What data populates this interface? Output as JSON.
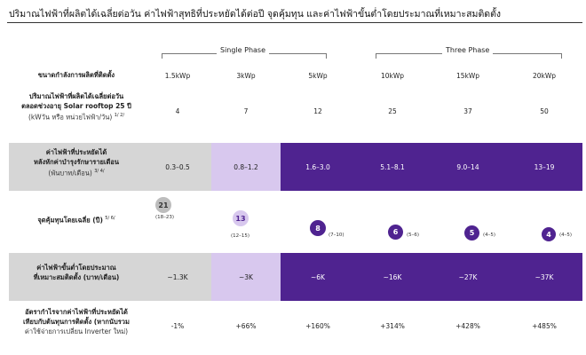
{
  "title": "ปริมาณไฟฟ้าที่ผลิตได้เฉลี่ยต่อวัน ค่าไฟฟ้าสุทธิที่ประหยัดได้ต่อปี จุดคุ้มทุน และค่าไฟฟ้าขั้นต่ำโดยประมาณที่เหมาะสมติดตั้ง",
  "phases": {
    "single": "Single Phase",
    "three": "Three Phase"
  },
  "rows": {
    "capacity": {
      "label": "ขนาดกำลังการผลิตที่ติดตั้ง",
      "values": [
        "1.5kWp",
        "3kWp",
        "5kWp",
        "10kWp",
        "15kWp",
        "20kWp"
      ]
    },
    "energy": {
      "label1": "ปริมาณไฟฟ้าที่ผลิตได้เฉลี่ยต่อวัน",
      "label2": "ตลอดช่วงอายุ Solar rooftop 25 ปี",
      "label3": "(kWวัน หรือ หน่วยไฟฟ้า/วัน)",
      "note": "1/ 2/",
      "values": [
        "4",
        "7",
        "12",
        "25",
        "37",
        "50"
      ]
    },
    "savings": {
      "label1": "ค่าไฟฟ้าที่ประหยัดได้",
      "label2": "หลังหักค่าบำรุงรักษารายเดือน",
      "label3": "(พันบาท/เดือน)",
      "note": "3/ 4/",
      "values": [
        "0.3–0.5",
        "0.8–1.2",
        "1.6–3.0",
        "5.1–8.1",
        "9.0–14",
        "13–19"
      ]
    },
    "payback": {
      "label": "จุดคุ้มทุนโดยเฉลี่ย (ปี)",
      "note": "5/ 6/",
      "items": [
        {
          "value": "21",
          "range": "(18–23)",
          "color": "#bdbdbd"
        },
        {
          "value": "13",
          "range": "(12–15)",
          "color": "#d8c8ee"
        },
        {
          "value": "8",
          "range": "(7–10)",
          "color": "#4f2390"
        },
        {
          "value": "6",
          "range": "(5–6)",
          "color": "#4f2390"
        },
        {
          "value": "5",
          "range": "(4–5)",
          "color": "#4f2390"
        },
        {
          "value": "4",
          "range": "(4–5)",
          "color": "#4f2390"
        }
      ]
    },
    "minbill": {
      "label1": "ค่าไฟฟ้าขั้นต่ำโดยประมาณ",
      "label2": "ที่เหมาะสมติดตั้ง (บาท/เดือน)",
      "values": [
        "~1.3K",
        "~3K",
        "~6K",
        "~16K",
        "~27K",
        "~37K"
      ]
    },
    "roi": {
      "label1": "อัตรากำไรจากค่าไฟฟ้าที่ประหยัดได้",
      "label2": "เทียบกับต้นทุนการติดตั้ง (หากนับรวม",
      "label3": "ค่าใช้จ่ายการเปลี่ยน Inverter ใหม่)",
      "values": [
        "-1%",
        "+66%",
        "+160%",
        "+314%",
        "+428%",
        "+485%"
      ]
    }
  },
  "colors": {
    "dark_purple": "#4f2390",
    "light_purple": "#d8c8ee",
    "grey_band": "#d6d6d6",
    "grey_bubble": "#bdbdbd"
  }
}
